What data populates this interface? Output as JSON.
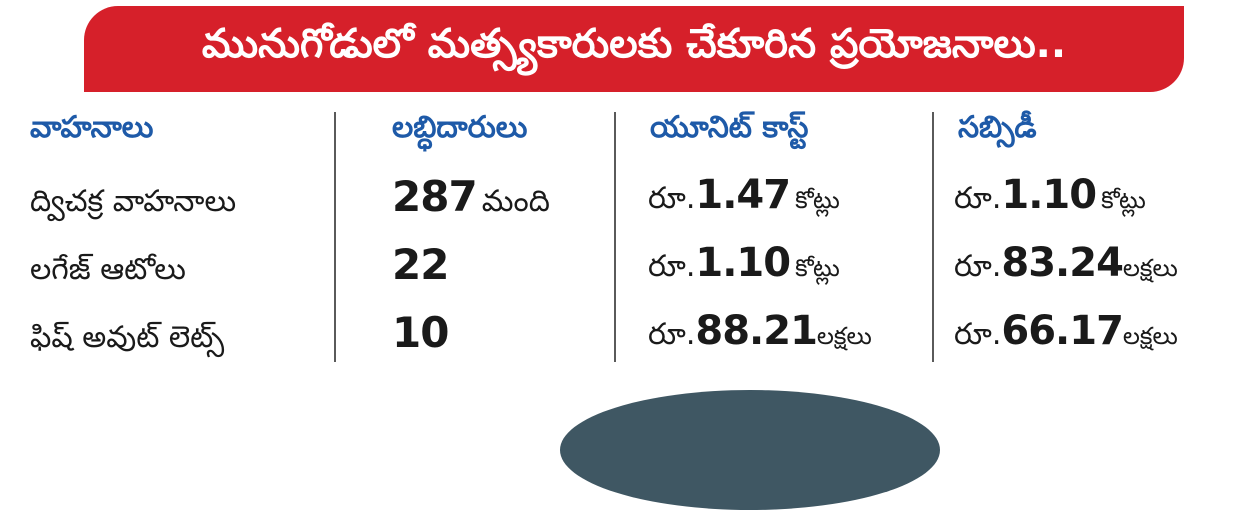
{
  "title": "మునుగోడులో మత్స్యకారులకు చేకూరిన ప్రయోజనాలు..",
  "columns": [
    "వాహనాలు",
    "లబ్ధిదారులు",
    "యూనిట్ కాస్ట్",
    "సబ్సిడీ"
  ],
  "rows": [
    {
      "vehicle": "ద్విచక్ర వాహనాలు",
      "beneficiaries": "287",
      "beneficiaries_unit": "మంది",
      "cost_prefix": "రూ.",
      "cost": "1.47",
      "cost_unit": "కోట్లు",
      "subsidy_prefix": "రూ.",
      "subsidy": "1.10",
      "subsidy_unit": "కోట్లు"
    },
    {
      "vehicle": "లగేజ్ ఆటోలు",
      "beneficiaries": "22",
      "beneficiaries_unit": "",
      "cost_prefix": "రూ.",
      "cost": "1.10",
      "cost_unit": "కోట్లు",
      "subsidy_prefix": "రూ.",
      "subsidy": "83.24",
      "subsidy_unit": "లక్షలు"
    },
    {
      "vehicle": "ఫిష్ అవుట్ లెట్స్",
      "beneficiaries": "10",
      "beneficiaries_unit": "",
      "cost_prefix": "రూ.",
      "cost": "88.21",
      "cost_unit": "లక్షలు",
      "subsidy_prefix": "రూ.",
      "subsidy": "66.17",
      "subsidy_unit": "లక్షలు"
    }
  ],
  "colors": {
    "banner": "#d6202a",
    "header_text": "#1e5aa8",
    "divider": "#5a5a5a"
  }
}
